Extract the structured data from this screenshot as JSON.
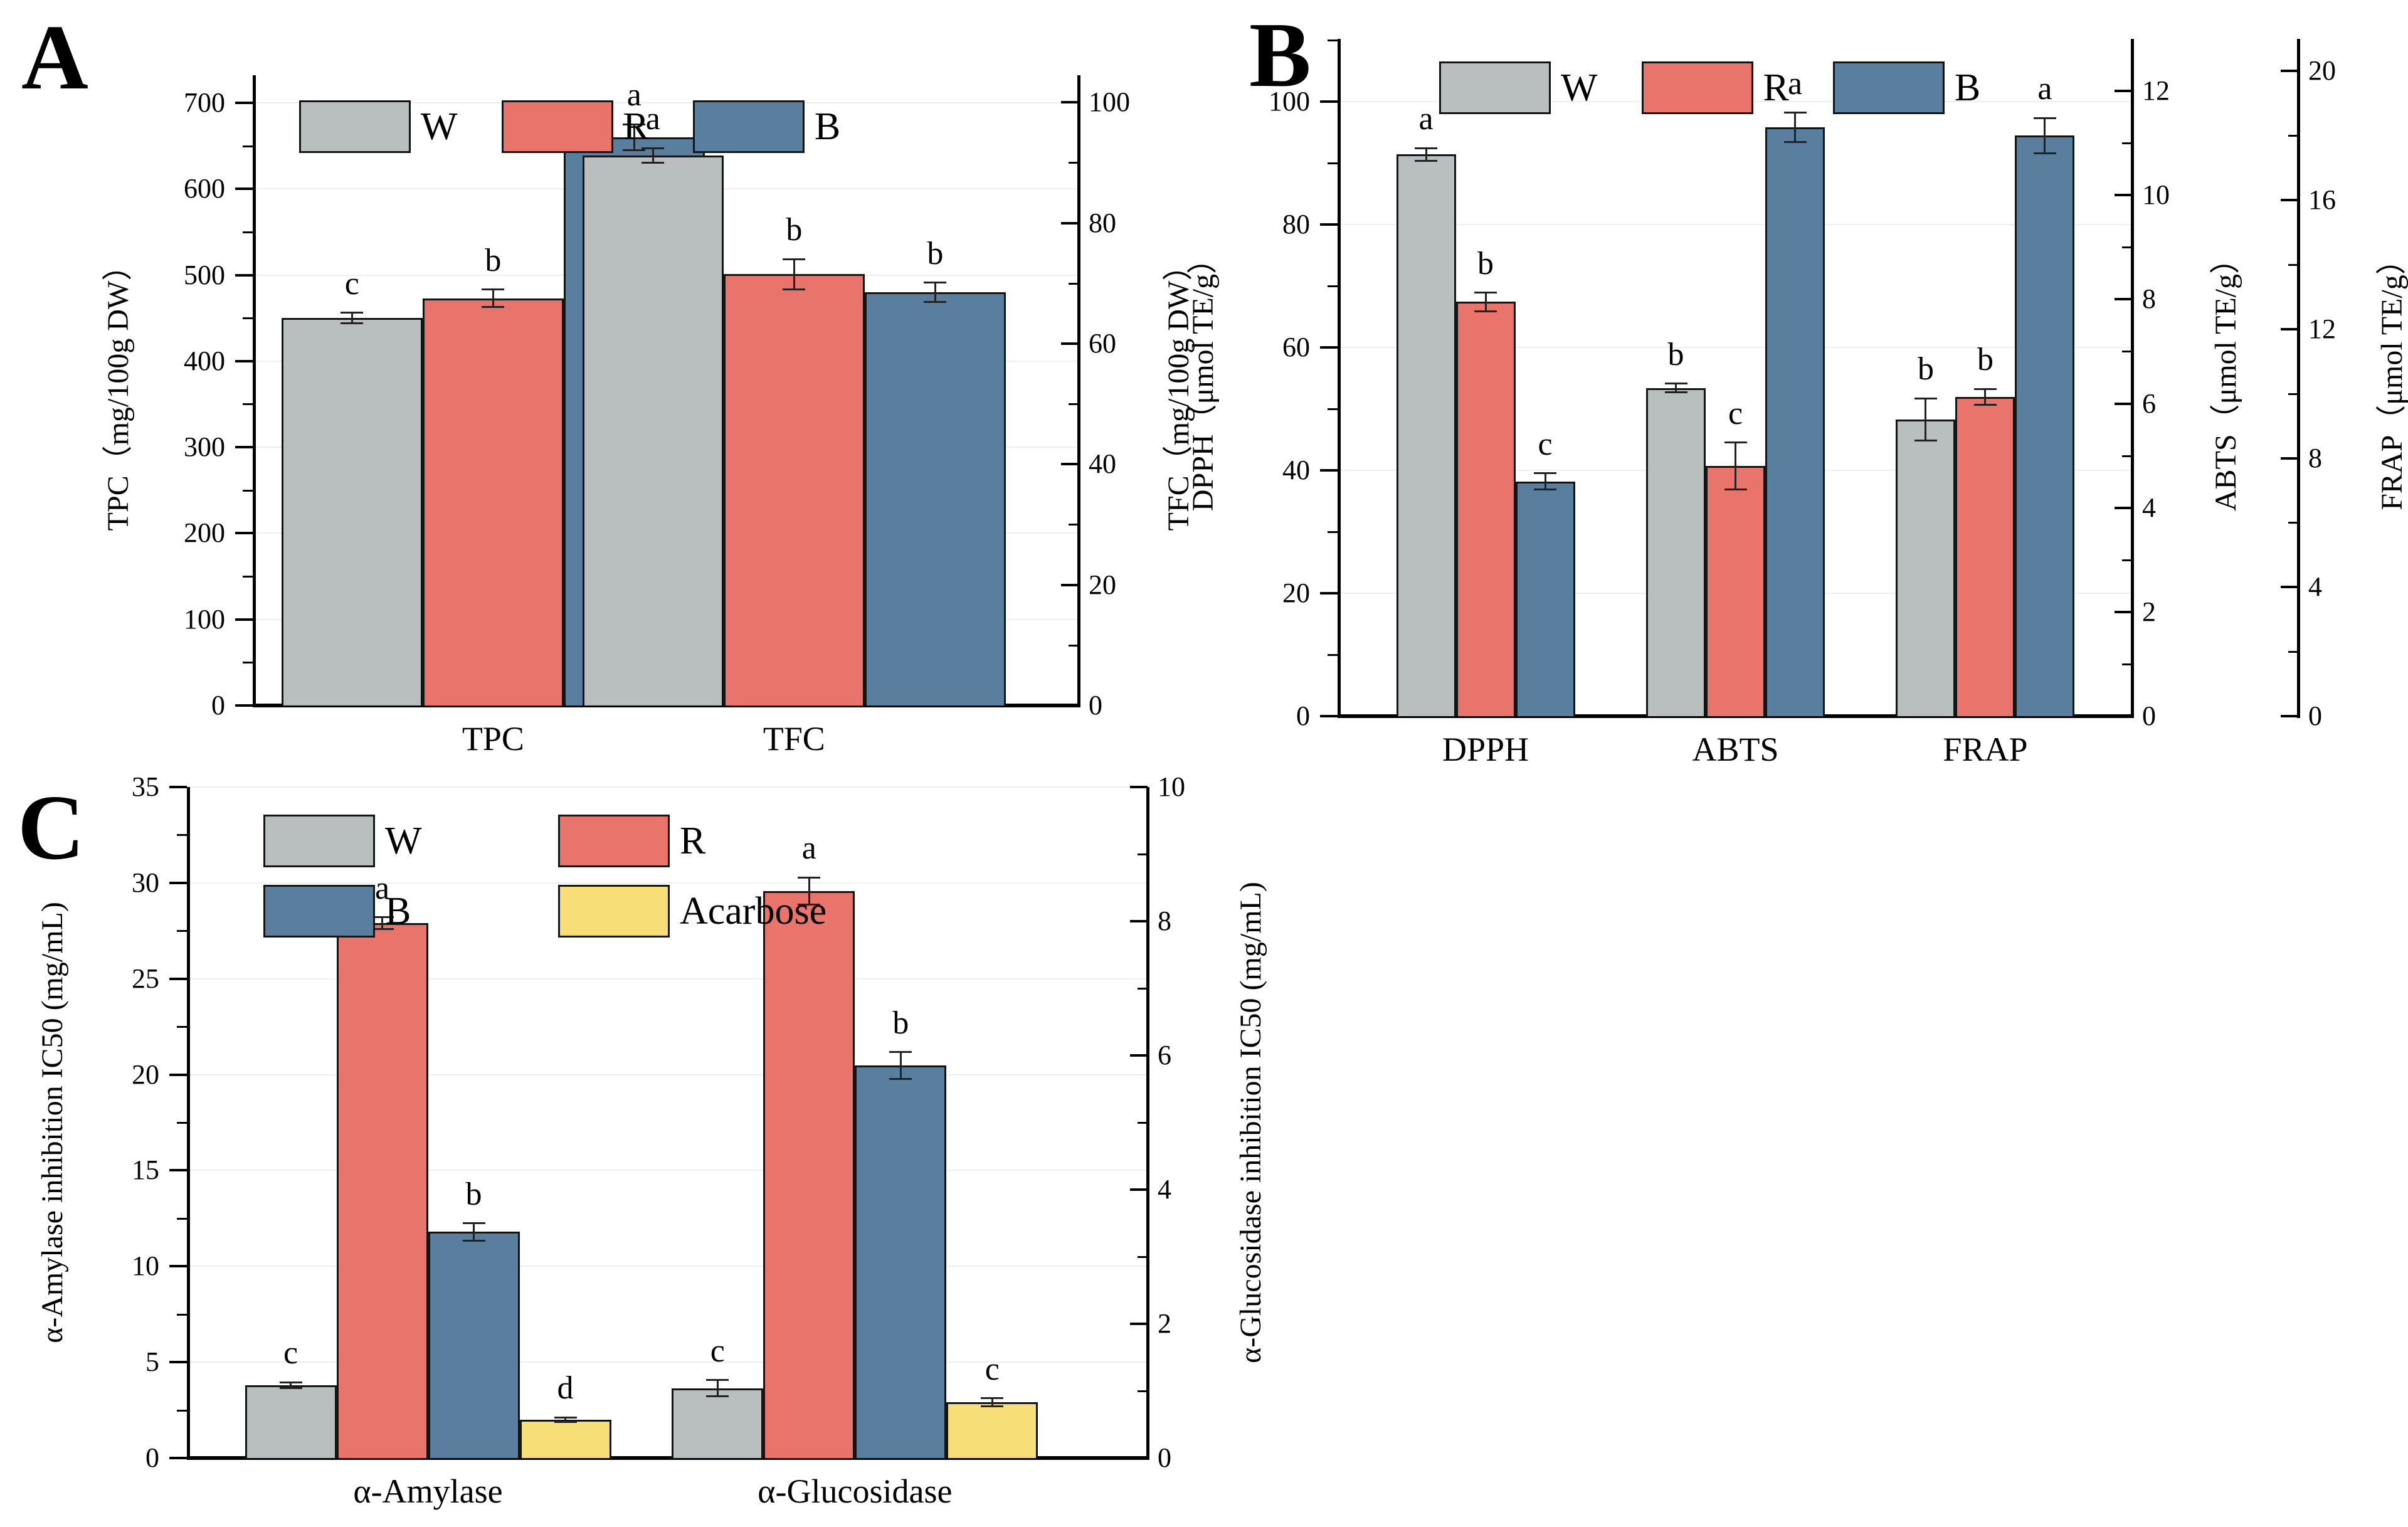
{
  "colors": {
    "W": "#b9bebe",
    "R": "#e8746b",
    "B": "#5a7e9e",
    "Acarbose": "#f8de76",
    "axis": "#000000",
    "grid": "#efefef"
  },
  "chart_data": [
    {
      "type": "bar",
      "panel_letter": "A",
      "title": "",
      "categories": [
        "TPC",
        "TFC"
      ],
      "category_axis": [
        "left",
        "right"
      ],
      "series": [
        {
          "name": "W",
          "color_key": "W",
          "values": [
            450,
            91.2
          ],
          "errors": [
            6,
            1.2
          ],
          "sig_letters": [
            "c",
            "a"
          ]
        },
        {
          "name": "R",
          "color_key": "R",
          "values": [
            473,
            71.5
          ],
          "errors": [
            10,
            2.5
          ],
          "sig_letters": [
            "b",
            "b"
          ]
        },
        {
          "name": "B",
          "color_key": "B",
          "values": [
            660,
            68.5
          ],
          "errors": [
            15,
            1.6
          ],
          "sig_letters": [
            "a",
            "b"
          ]
        }
      ],
      "axes": {
        "left": {
          "label": "TPC（mg/100g DW）",
          "ticks": [
            0,
            100,
            200,
            300,
            400,
            500,
            600,
            700
          ],
          "range": [
            0,
            732
          ]
        },
        "right": {
          "label": "TFC（mg/100g DW）",
          "ticks": [
            0,
            20,
            40,
            60,
            80,
            100
          ],
          "range": [
            0,
            104.5
          ]
        }
      },
      "legend": {
        "rows": [
          [
            "W",
            "R",
            "B"
          ]
        ],
        "position": "top-left"
      },
      "grid": true
    },
    {
      "type": "bar",
      "panel_letter": "B",
      "title": "",
      "categories": [
        "DPPH",
        "ABTS",
        "FRAP"
      ],
      "category_axis": [
        "left",
        "abts",
        "frap"
      ],
      "series": [
        {
          "name": "W",
          "color_key": "W",
          "values": [
            91.4,
            6.3,
            9.2
          ],
          "errors": [
            1.0,
            0.08,
            0.65
          ],
          "sig_letters": [
            "a",
            "b",
            "b"
          ]
        },
        {
          "name": "R",
          "color_key": "R",
          "values": [
            67.4,
            4.8,
            9.9
          ],
          "errors": [
            1.5,
            0.45,
            0.25
          ],
          "sig_letters": [
            "b",
            "c",
            "b"
          ]
        },
        {
          "name": "B",
          "color_key": "B",
          "values": [
            38.2,
            11.3,
            18.0
          ],
          "errors": [
            1.3,
            0.28,
            0.55
          ],
          "sig_letters": [
            "c",
            "a",
            "a"
          ]
        }
      ],
      "axes": {
        "left": {
          "label": "DPPH（μmol TE/g）",
          "ticks": [
            0,
            20,
            40,
            60,
            80,
            100
          ],
          "range": [
            0,
            110.2
          ]
        },
        "abts": {
          "label": "ABTS（μmol TE/g）",
          "ticks": [
            0,
            2,
            4,
            6,
            8,
            10,
            12
          ],
          "range": [
            0,
            13.0
          ]
        },
        "frap": {
          "label": "FRAP（μmol TE/g）",
          "ticks": [
            0,
            4,
            8,
            12,
            16,
            20
          ],
          "range": [
            0,
            21.0
          ]
        }
      },
      "legend": {
        "rows": [
          [
            "W",
            "R",
            "B"
          ]
        ],
        "position": "top-left"
      },
      "grid": true
    },
    {
      "type": "bar",
      "panel_letter": "C",
      "title": "",
      "categories": [
        "α-Amylase",
        "α-Glucosidase"
      ],
      "category_axis": [
        "left",
        "right"
      ],
      "series": [
        {
          "name": "W",
          "color_key": "W",
          "values": [
            3.8,
            1.04
          ],
          "errors": [
            0.15,
            0.12
          ],
          "sig_letters": [
            "c",
            "c"
          ]
        },
        {
          "name": "R",
          "color_key": "R",
          "values": [
            27.9,
            8.45
          ],
          "errors": [
            0.3,
            0.2
          ],
          "sig_letters": [
            "a",
            "a"
          ]
        },
        {
          "name": "B",
          "color_key": "B",
          "values": [
            11.8,
            5.85
          ],
          "errors": [
            0.45,
            0.2
          ],
          "sig_letters": [
            "b",
            "b"
          ]
        },
        {
          "name": "Acarbose",
          "color_key": "Acarbose",
          "values": [
            2.0,
            0.83
          ],
          "errors": [
            0.12,
            0.06
          ],
          "sig_letters": [
            "d",
            "c"
          ]
        }
      ],
      "axes": {
        "left": {
          "label": "α-Amylase inhibition IC50 (mg/mL)",
          "ticks": [
            0,
            5,
            10,
            15,
            20,
            25,
            30,
            35
          ],
          "range": [
            0,
            35
          ]
        },
        "right": {
          "label": "α-Glucosidase inhibition IC50 (mg/mL)",
          "ticks": [
            0,
            2,
            4,
            6,
            8,
            10
          ],
          "range": [
            0,
            10
          ]
        }
      },
      "legend": {
        "rows": [
          [
            "W",
            "R"
          ],
          [
            "B",
            "Acarbose"
          ]
        ],
        "position": "top-left"
      },
      "grid": true
    }
  ]
}
